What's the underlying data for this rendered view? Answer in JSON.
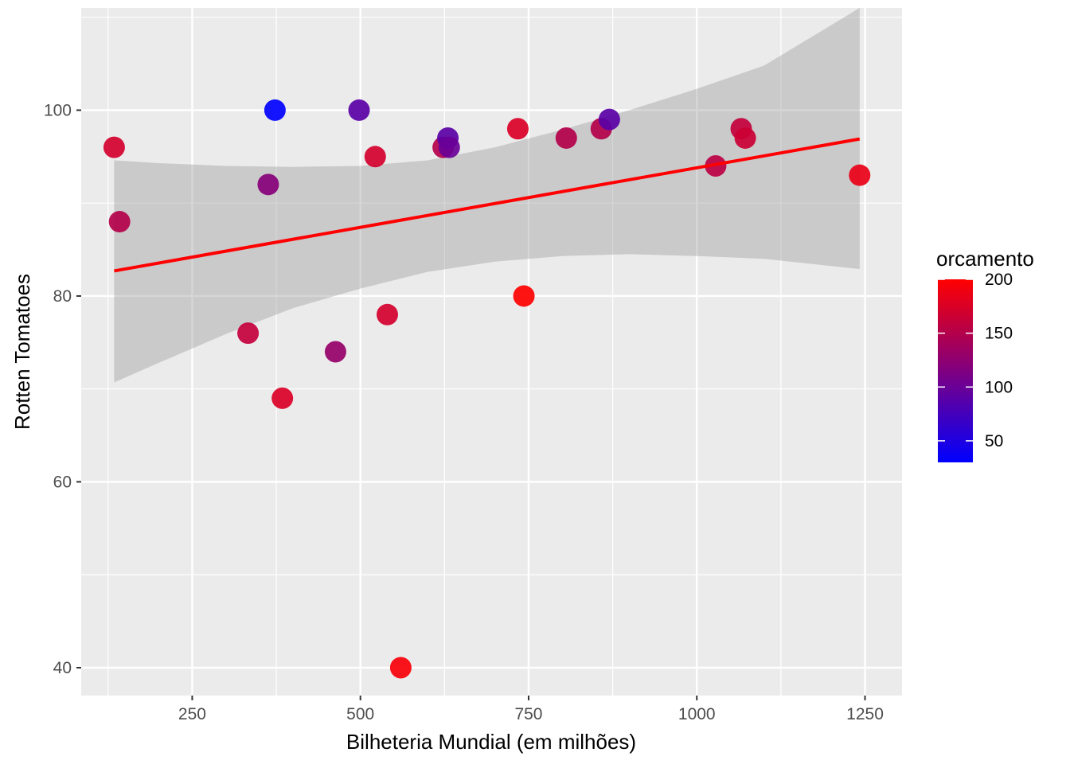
{
  "chart_data": {
    "type": "scatter",
    "xlabel": "Bilheteria Mundial (em milhões)",
    "ylabel": "Rotten Tomatoes",
    "xlim": [
      85,
      1305
    ],
    "ylim": [
      37,
      111
    ],
    "x_ticks": [
      250,
      500,
      750,
      1000,
      1250
    ],
    "y_ticks": [
      40,
      60,
      80,
      100
    ],
    "grid": true,
    "colors": {
      "panel_background": "#ebebeb",
      "grid": "#ffffff",
      "low": "#0000ff",
      "high": "#ff0000",
      "smooth_line": "#ff0000",
      "confidence_band": "#999999"
    },
    "legend": {
      "title": "orcamento",
      "placement": "right",
      "type": "colorbar",
      "range": [
        30,
        200
      ],
      "breaks": [
        50,
        100,
        150,
        200
      ]
    },
    "points": [
      {
        "x": 134,
        "y": 96,
        "orcamento": 170
      },
      {
        "x": 142,
        "y": 88,
        "orcamento": 150
      },
      {
        "x": 333,
        "y": 76,
        "orcamento": 160
      },
      {
        "x": 363,
        "y": 92,
        "orcamento": 120
      },
      {
        "x": 373,
        "y": 100,
        "orcamento": 30
      },
      {
        "x": 384,
        "y": 69,
        "orcamento": 175
      },
      {
        "x": 463,
        "y": 74,
        "orcamento": 130
      },
      {
        "x": 498,
        "y": 100,
        "orcamento": 90
      },
      {
        "x": 522,
        "y": 95,
        "orcamento": 170
      },
      {
        "x": 540,
        "y": 78,
        "orcamento": 170
      },
      {
        "x": 560,
        "y": 40,
        "orcamento": 195
      },
      {
        "x": 623,
        "y": 96,
        "orcamento": 150
      },
      {
        "x": 630,
        "y": 97,
        "orcamento": 90
      },
      {
        "x": 632,
        "y": 96,
        "orcamento": 100
      },
      {
        "x": 734,
        "y": 98,
        "orcamento": 175
      },
      {
        "x": 743,
        "y": 80,
        "orcamento": 200
      },
      {
        "x": 806,
        "y": 97,
        "orcamento": 150
      },
      {
        "x": 858,
        "y": 98,
        "orcamento": 150
      },
      {
        "x": 870,
        "y": 99,
        "orcamento": 90
      },
      {
        "x": 1028,
        "y": 94,
        "orcamento": 155
      },
      {
        "x": 1066,
        "y": 98,
        "orcamento": 160
      },
      {
        "x": 1072,
        "y": 97,
        "orcamento": 165
      },
      {
        "x": 1242,
        "y": 93,
        "orcamento": 185
      }
    ],
    "smooth": {
      "method": "lm",
      "x": [
        134,
        1242
      ],
      "y": [
        82.7,
        96.9
      ]
    },
    "confidence_band": {
      "x": [
        134,
        200,
        300,
        400,
        500,
        600,
        700,
        800,
        900,
        1000,
        1100,
        1242
      ],
      "upper": [
        94.6,
        94.3,
        94.0,
        93.9,
        94.0,
        94.6,
        96.0,
        97.9,
        100.0,
        102.3,
        104.8,
        111.0
      ],
      "lower": [
        70.7,
        72.8,
        75.9,
        78.7,
        80.8,
        82.6,
        83.7,
        84.3,
        84.5,
        84.3,
        84.0,
        82.9
      ]
    }
  }
}
